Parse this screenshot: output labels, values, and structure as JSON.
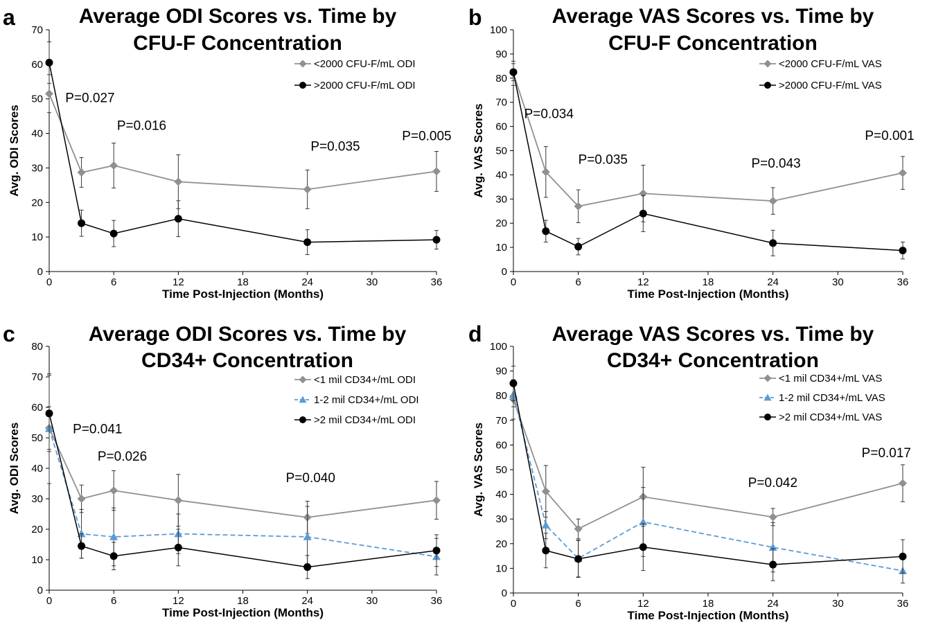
{
  "colors": {
    "gray": "#909090",
    "black": "#000000",
    "blue": "#5b9bd5"
  },
  "chart_data": [
    {
      "panel": "a",
      "type": "line",
      "title": [
        "Average ODI Scores vs. Time by",
        "CFU-F Concentration"
      ],
      "xlabel": "Time Post-Injection (Months)",
      "ylabel": "Avg. ODI Scores",
      "xlim": [
        0,
        36
      ],
      "ylim": [
        0,
        70
      ],
      "xticks": [
        0,
        6,
        12,
        18,
        24,
        30,
        36
      ],
      "yticks": [
        0,
        10,
        20,
        30,
        40,
        50,
        60,
        70
      ],
      "legend_position": "top-right",
      "series": [
        {
          "name": "<2000 CFU-F/mL ODI",
          "color": "#909090",
          "marker": "diamond",
          "dash": "solid",
          "x": [
            0,
            3,
            6,
            12,
            24,
            36
          ],
          "y": [
            51.5,
            28.7,
            30.7,
            26.0,
            23.8,
            29.0
          ],
          "err": [
            5.5,
            4.3,
            6.5,
            7.8,
            5.6,
            5.8
          ]
        },
        {
          "name": ">2000 CFU-F/mL ODI",
          "color": "#000000",
          "marker": "circle",
          "dash": "solid",
          "x": [
            0,
            3,
            6,
            12,
            24,
            36
          ],
          "y": [
            60.5,
            14.0,
            11.0,
            15.3,
            8.5,
            9.2
          ],
          "err": [
            6.0,
            3.8,
            3.8,
            5.2,
            3.6,
            2.7
          ]
        }
      ],
      "annotations": [
        {
          "text": "P=0.027",
          "x": 1.5,
          "y": 49
        },
        {
          "text": "P=0.016",
          "x": 6.3,
          "y": 41
        },
        {
          "text": "P=0.035",
          "x": 24.3,
          "y": 35
        },
        {
          "text": "P=0.005",
          "x": 32.8,
          "y": 38
        }
      ]
    },
    {
      "panel": "b",
      "type": "line",
      "title": [
        "Average VAS Scores vs. Time by",
        "CFU-F Concentration"
      ],
      "xlabel": "Time Post-Injection (Months)",
      "ylabel": "Avg. VAS Scores",
      "xlim": [
        0,
        36
      ],
      "ylim": [
        0,
        100
      ],
      "xticks": [
        0,
        6,
        12,
        18,
        24,
        30,
        36
      ],
      "yticks": [
        0,
        10,
        20,
        30,
        40,
        50,
        60,
        70,
        80,
        90,
        100
      ],
      "legend_position": "top-right",
      "series": [
        {
          "name": "<2000 CFU-F/mL VAS",
          "color": "#909090",
          "marker": "diamond",
          "dash": "solid",
          "x": [
            0,
            3,
            6,
            12,
            24,
            36
          ],
          "y": [
            82.0,
            41.2,
            27.0,
            32.3,
            29.2,
            40.8
          ],
          "err": [
            5.0,
            10.5,
            6.8,
            11.7,
            5.5,
            6.8
          ]
        },
        {
          "name": ">2000 CFU-F/mL VAS",
          "color": "#000000",
          "marker": "circle",
          "dash": "solid",
          "x": [
            0,
            3,
            6,
            12,
            24,
            36
          ],
          "y": [
            82.5,
            16.7,
            10.3,
            24.0,
            11.8,
            8.7
          ],
          "err": [
            3.5,
            4.5,
            3.4,
            7.5,
            5.3,
            3.5
          ]
        }
      ],
      "annotations": [
        {
          "text": "P=0.034",
          "x": 1.0,
          "y": 63.5
        },
        {
          "text": "P=0.035",
          "x": 6.0,
          "y": 44.5
        },
        {
          "text": "P=0.043",
          "x": 22.0,
          "y": 43
        },
        {
          "text": "P=0.001",
          "x": 32.5,
          "y": 54.5
        }
      ]
    },
    {
      "panel": "c",
      "type": "line",
      "title": [
        "Average ODI Scores vs. Time by",
        "CD34+ Concentration"
      ],
      "xlabel": "Time Post-Injection (Months)",
      "ylabel": "Avg. ODI Scores",
      "xlim": [
        0,
        36
      ],
      "ylim": [
        0,
        80
      ],
      "xticks": [
        0,
        6,
        12,
        18,
        24,
        30,
        36
      ],
      "yticks": [
        0,
        10,
        20,
        30,
        40,
        50,
        60,
        70,
        80
      ],
      "legend_position": "top-right",
      "series": [
        {
          "name": "<1 mil CD34+/mL ODI",
          "color": "#909090",
          "marker": "diamond",
          "dash": "solid",
          "x": [
            0,
            3,
            6,
            12,
            24,
            36
          ],
          "y": [
            53.2,
            30.0,
            32.7,
            29.5,
            23.9,
            29.5
          ],
          "err": [
            7.0,
            4.5,
            6.5,
            8.5,
            5.3,
            6.2
          ]
        },
        {
          "name": "1-2 mil CD34+/mL ODI",
          "color": "#5b9bd5",
          "marker": "triangle",
          "dash": "dashed",
          "x": [
            0,
            3,
            6,
            12,
            24,
            36
          ],
          "y": [
            53.0,
            18.5,
            17.5,
            18.5,
            17.5,
            11.0
          ],
          "err": [
            18.0,
            8.0,
            9.5,
            6.5,
            10.0,
            6.0
          ]
        },
        {
          "name": ">2 mil CD34+/mL ODI",
          "color": "#000000",
          "marker": "circle",
          "dash": "solid",
          "x": [
            0,
            3,
            6,
            12,
            24,
            36
          ],
          "y": [
            58.0,
            14.5,
            11.2,
            14.0,
            7.6,
            13.0
          ],
          "err": [
            12.5,
            4.0,
            4.5,
            6.0,
            3.8,
            5.2
          ]
        }
      ],
      "annotations": [
        {
          "text": "P=0.041",
          "x": 2.2,
          "y": 51.5
        },
        {
          "text": "P=0.026",
          "x": 4.5,
          "y": 42.5
        },
        {
          "text": "P=0.040",
          "x": 22.0,
          "y": 35.5
        }
      ]
    },
    {
      "panel": "d",
      "type": "line",
      "title": [
        "Average VAS Scores vs. Time by",
        "CD34+ Concentration"
      ],
      "xlabel": "Time Post-Injection (Months)",
      "ylabel": "Avg. VAS Scores",
      "xlim": [
        0,
        36
      ],
      "ylim": [
        0,
        100
      ],
      "xticks": [
        0,
        6,
        12,
        18,
        24,
        30,
        36
      ],
      "yticks": [
        0,
        10,
        20,
        30,
        40,
        50,
        60,
        70,
        80,
        90,
        100
      ],
      "legend_position": "top-right",
      "series": [
        {
          "name": "<1 mil CD34+/mL VAS",
          "color": "#909090",
          "marker": "diamond",
          "dash": "solid",
          "x": [
            0,
            3,
            6,
            12,
            24,
            36
          ],
          "y": [
            78.5,
            41.2,
            26.0,
            39.0,
            30.8,
            44.5
          ],
          "err": [
            8.0,
            10.5,
            4.0,
            12.0,
            3.5,
            7.5
          ]
        },
        {
          "name": "1-2 mil CD34+/mL VAS",
          "color": "#5b9bd5",
          "marker": "triangle",
          "dash": "dashed",
          "x": [
            0,
            3,
            6,
            12,
            24,
            36
          ],
          "y": [
            80.5,
            27.5,
            14.0,
            28.8,
            18.5,
            9.0
          ],
          "err": [
            5.0,
            5.5,
            7.5,
            14.0,
            10.0,
            5.0
          ]
        },
        {
          "name": ">2 mil CD34+/mL VAS",
          "color": "#000000",
          "marker": "circle",
          "dash": "solid",
          "x": [
            0,
            3,
            6,
            12,
            24,
            36
          ],
          "y": [
            85.0,
            17.2,
            13.8,
            18.6,
            11.5,
            14.8
          ],
          "err": [
            7.0,
            7.0,
            7.5,
            9.5,
            6.5,
            6.8
          ]
        }
      ],
      "annotations": [
        {
          "text": "P=0.042",
          "x": 21.7,
          "y": 43
        },
        {
          "text": "P=0.017",
          "x": 32.2,
          "y": 55
        }
      ]
    }
  ]
}
